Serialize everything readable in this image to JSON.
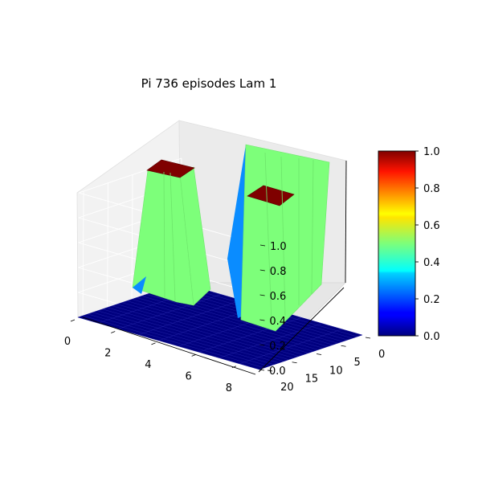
{
  "chart_data": {
    "type": "surface3d",
    "title": "Pi 736 episodes Lam 1",
    "xlabel": "",
    "ylabel": "",
    "zlabel": "",
    "x_ticks": [
      "0",
      "2",
      "4",
      "6",
      "8"
    ],
    "y_ticks": [
      "0",
      "5",
      "10",
      "15",
      "20"
    ],
    "z_ticks": [
      "0.0",
      "0.2",
      "0.4",
      "0.6",
      "0.8",
      "1.0"
    ],
    "xlim": [
      0,
      9
    ],
    "ylim": [
      0,
      21
    ],
    "zlim": [
      0,
      1
    ],
    "colormap": "jet",
    "grid": true,
    "colorbar": {
      "ticks": [
        "0.0",
        "0.2",
        "0.4",
        "0.6",
        "0.8",
        "1.0"
      ],
      "range": [
        0,
        1
      ],
      "placement": "right"
    },
    "surface_values": [
      0.0,
      0.5,
      1.0
    ],
    "surface_colors": [
      "#00007f",
      "#7dff7a",
      "#7f0000"
    ]
  }
}
